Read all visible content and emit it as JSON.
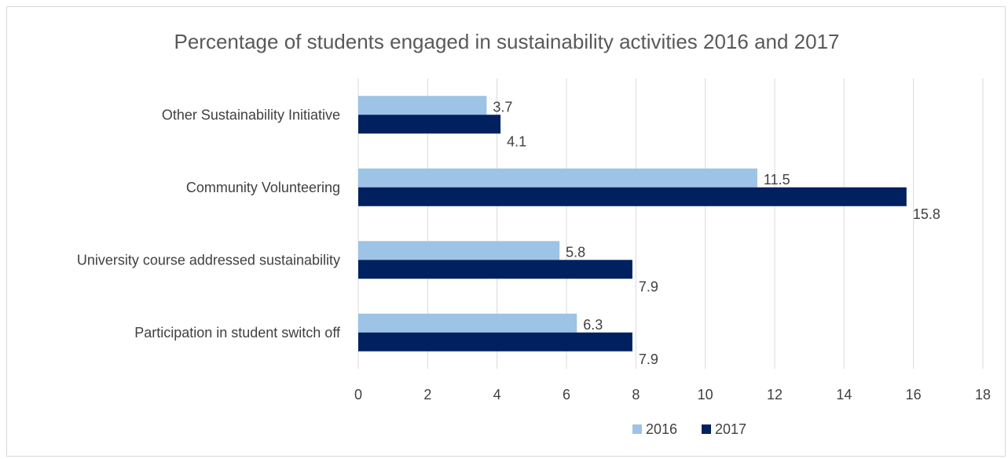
{
  "chart_data": {
    "type": "bar",
    "orientation": "horizontal",
    "title": "Percentage of students engaged in sustainability activities 2016 and 2017",
    "categories": [
      "Other Sustainability Initiative",
      "Community Volunteering",
      "University course addressed sustainability",
      "Participation in student switch off"
    ],
    "series": [
      {
        "name": "2016",
        "color": "#9dc3e6",
        "values": [
          3.7,
          11.5,
          5.8,
          6.3
        ]
      },
      {
        "name": "2017",
        "color": "#002060",
        "values": [
          4.1,
          15.8,
          7.9,
          7.9
        ]
      }
    ],
    "xlim": [
      0,
      18
    ],
    "xticks": [
      "0",
      "2",
      "4",
      "6",
      "8",
      "10",
      "12",
      "14",
      "16",
      "18"
    ],
    "grid": true,
    "legend": "bottom"
  }
}
